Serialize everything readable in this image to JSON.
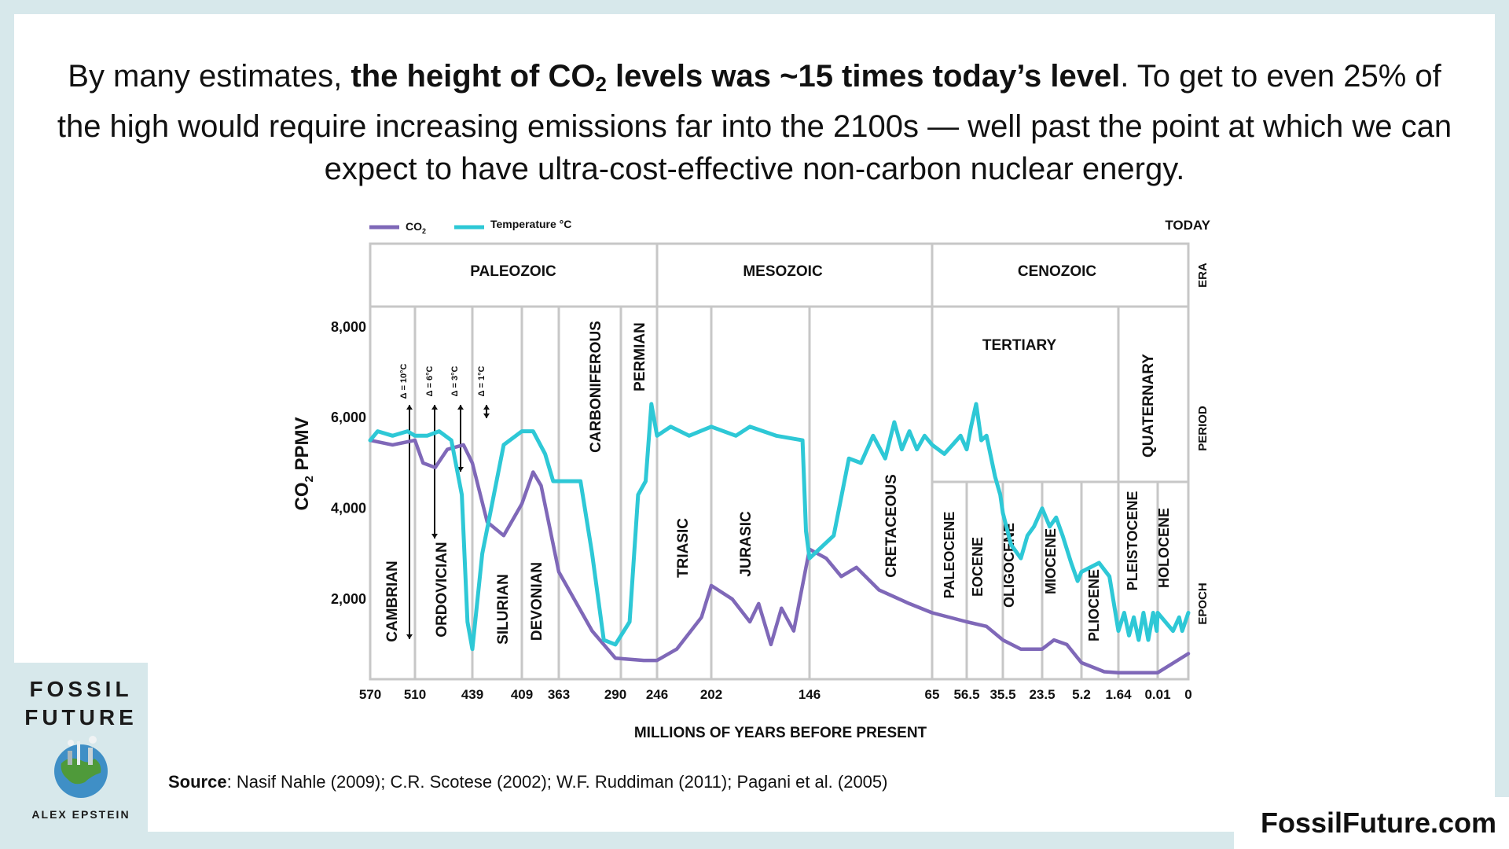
{
  "headline": {
    "part1": "By many estimates, ",
    "bold_a": "the height of CO",
    "bold_sub": "2",
    "bold_b": " levels was ~15 times today’s level",
    "part2": ". To get to even 25% of the high would require increasing emissions far into the 2100s — well past the point at which we can expect to have ultra-cost-effective non-carbon nuclear energy."
  },
  "source": {
    "label": "Source",
    "text": ": Nasif Nahle (2009); C.R. Scotese (2002); W.F. Ruddiman (2011); Pagani et al. (2005)"
  },
  "site": "FossilFuture.com",
  "book": {
    "title_line1": "FOSSIL",
    "title_line2": "FUTURE",
    "author": "ALEX EPSTEIN"
  },
  "chart_data": {
    "type": "line",
    "title": "",
    "xlabel": "MILLIONS OF YEARS BEFORE PRESENT",
    "ylabel_main": "CO",
    "ylabel_sub": "2",
    "ylabel_rest": " PPMV",
    "today_label": "TODAY",
    "row_labels": {
      "era": "ERA",
      "period": "PERIOD",
      "epoch": "EPOCH"
    },
    "y_ticks": [
      {
        "value": 2000,
        "label": "2,000"
      },
      {
        "value": 4000,
        "label": "4,000"
      },
      {
        "value": 6000,
        "label": "6,000"
      },
      {
        "value": 8000,
        "label": "8,000"
      }
    ],
    "ylim": [
      0,
      8000
    ],
    "x_ticks": [
      "570",
      "510",
      "439",
      "409",
      "363",
      "290",
      "246",
      "202",
      "146",
      "65",
      "56.5",
      "35.5",
      "23.5",
      "5.2",
      "1.64",
      "0.01",
      "0"
    ],
    "x_scale": "nonlinear (piecewise by geologic interval)",
    "eras": [
      "PALEOZOIC",
      "MESOZOIC",
      "CENOZOIC"
    ],
    "periods": [
      "CAMBRIAN",
      "ORDOVICIAN",
      "SILURIAN",
      "DEVONIAN",
      "CARBONIFEROUS",
      "PERMIAN",
      "TRIASIC",
      "JURASIC",
      "CRETACEOUS",
      "TERTIARY",
      "QUATERNARY"
    ],
    "epochs": [
      "PALEOCENE",
      "EOCENE",
      "OLIGOCENE",
      "MIOCENE",
      "PLIOCENE",
      "PLEISTOCENE",
      "HOLOCENE"
    ],
    "delta_annotations": [
      "Δ = 10°C",
      "Δ = 6°C",
      "Δ = 3°C",
      "Δ = 1°C"
    ],
    "legend": [
      {
        "name": "CO",
        "sub": "2",
        "color": "#7f68b8"
      },
      {
        "name": "Temperature °C",
        "sub": "",
        "color": "#2ec8d6"
      }
    ],
    "series": [
      {
        "name": "CO2",
        "color": "#7f68b8",
        "points": [
          [
            "570",
            5500
          ],
          [
            "540",
            5400
          ],
          [
            "510",
            5500
          ],
          [
            "500",
            5000
          ],
          [
            "485",
            4900
          ],
          [
            "470",
            5300
          ],
          [
            "450",
            5400
          ],
          [
            "439",
            5000
          ],
          [
            "430",
            3700
          ],
          [
            "420",
            3400
          ],
          [
            "409",
            4100
          ],
          [
            "395",
            4800
          ],
          [
            "385",
            4500
          ],
          [
            "363",
            2600
          ],
          [
            "320",
            1300
          ],
          [
            "290",
            700
          ],
          [
            "260",
            650
          ],
          [
            "246",
            650
          ],
          [
            "230",
            900
          ],
          [
            "210",
            1600
          ],
          [
            "202",
            2300
          ],
          [
            "190",
            2000
          ],
          [
            "180",
            1500
          ],
          [
            "175",
            1900
          ],
          [
            "168",
            1000
          ],
          [
            "162",
            1800
          ],
          [
            "155",
            1300
          ],
          [
            "148",
            2700
          ],
          [
            "146",
            3100
          ],
          [
            "135",
            2900
          ],
          [
            "125",
            2500
          ],
          [
            "115",
            2700
          ],
          [
            "100",
            2200
          ],
          [
            "80",
            1900
          ],
          [
            "65",
            1700
          ],
          [
            "56.5",
            1500
          ],
          [
            "45",
            1400
          ],
          [
            "35.5",
            1100
          ],
          [
            "30",
            900
          ],
          [
            "23.5",
            900
          ],
          [
            "18",
            1100
          ],
          [
            "12",
            1000
          ],
          [
            "5.2",
            600
          ],
          [
            "3",
            400
          ],
          [
            "1.64",
            380
          ],
          [
            "0.5",
            380
          ],
          [
            "0.01",
            380
          ],
          [
            "0",
            800
          ]
        ]
      },
      {
        "name": "Temperature °C",
        "color": "#2ec8d6",
        "points": [
          [
            "570",
            5500
          ],
          [
            "560",
            5700
          ],
          [
            "540",
            5600
          ],
          [
            "520",
            5700
          ],
          [
            "510",
            5600
          ],
          [
            "495",
            5600
          ],
          [
            "480",
            5700
          ],
          [
            "465",
            5500
          ],
          [
            "452",
            4300
          ],
          [
            "445",
            1500
          ],
          [
            "439",
            900
          ],
          [
            "433",
            3000
          ],
          [
            "420",
            5400
          ],
          [
            "409",
            5700
          ],
          [
            "395",
            5700
          ],
          [
            "380",
            5200
          ],
          [
            "370",
            4600
          ],
          [
            "363",
            4600
          ],
          [
            "335",
            4600
          ],
          [
            "320",
            3000
          ],
          [
            "305",
            1100
          ],
          [
            "290",
            1000
          ],
          [
            "275",
            1500
          ],
          [
            "266",
            4300
          ],
          [
            "258",
            4600
          ],
          [
            "252",
            6300
          ],
          [
            "246",
            5600
          ],
          [
            "235",
            5800
          ],
          [
            "220",
            5600
          ],
          [
            "202",
            5800
          ],
          [
            "188",
            5600
          ],
          [
            "180",
            5800
          ],
          [
            "165",
            5600
          ],
          [
            "150",
            5500
          ],
          [
            "148",
            3500
          ],
          [
            "146",
            2900
          ],
          [
            "130",
            3400
          ],
          [
            "120",
            5100
          ],
          [
            "112",
            5000
          ],
          [
            "104",
            5600
          ],
          [
            "96",
            5100
          ],
          [
            "90",
            5900
          ],
          [
            "85",
            5300
          ],
          [
            "80",
            5700
          ],
          [
            "75",
            5300
          ],
          [
            "70",
            5600
          ],
          [
            "65",
            5400
          ],
          [
            "62",
            5200
          ],
          [
            "60",
            5400
          ],
          [
            "58",
            5600
          ],
          [
            "56.5",
            5300
          ],
          [
            "54",
            5800
          ],
          [
            "51",
            6300
          ],
          [
            "48",
            5500
          ],
          [
            "45",
            5600
          ],
          [
            "40",
            4700
          ],
          [
            "37",
            4300
          ],
          [
            "35.5",
            3900
          ],
          [
            "33",
            3200
          ],
          [
            "30",
            2900
          ],
          [
            "28",
            3400
          ],
          [
            "26",
            3600
          ],
          [
            "23.5",
            4000
          ],
          [
            "20",
            3600
          ],
          [
            "17",
            3800
          ],
          [
            "14",
            3400
          ],
          [
            "10",
            2800
          ],
          [
            "7",
            2400
          ],
          [
            "5.2",
            2600
          ],
          [
            "3.5",
            2800
          ],
          [
            "2.5",
            2500
          ],
          [
            "1.64",
            1300
          ],
          [
            "1.4",
            1700
          ],
          [
            "1.2",
            1200
          ],
          [
            "1.0",
            1600
          ],
          [
            "0.8",
            1100
          ],
          [
            "0.6",
            1700
          ],
          [
            "0.4",
            1100
          ],
          [
            "0.2",
            1700
          ],
          [
            "0.05",
            1300
          ],
          [
            "0.01",
            1700
          ],
          [
            "0.005",
            1300
          ],
          [
            "0.003",
            1600
          ],
          [
            "0.002",
            1300
          ],
          [
            "0",
            1700
          ]
        ]
      }
    ]
  }
}
